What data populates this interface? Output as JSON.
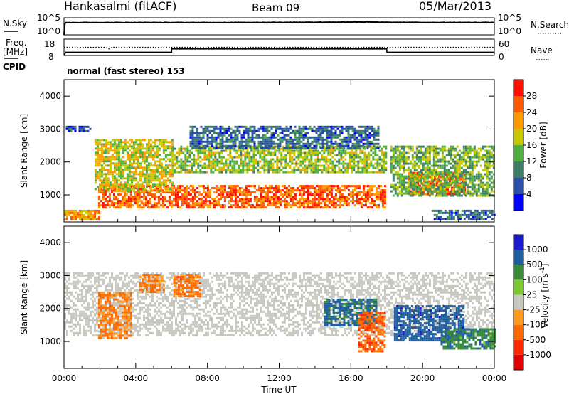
{
  "header": {
    "station": "Hankasalmi (fitACF)",
    "beam": "Beam 09",
    "date": "05/Mar/2013"
  },
  "strip_nsky": {
    "label": "N.Sky",
    "right_label": "N.Search",
    "left_ticks": [
      "10^5",
      "10^0"
    ],
    "right_ticks": [
      "10^5",
      "10^0"
    ]
  },
  "strip_freq": {
    "label_line1": "Freq.",
    "label_line2": "[MHz]",
    "left_ticks": [
      "18",
      "8"
    ],
    "right_ticks": [
      "60",
      "0"
    ],
    "right_label": "Nave",
    "cpid_label": "CPID",
    "cpid_text": "normal (fast stereo) 153"
  },
  "x_axis": {
    "ticks": [
      "00:00",
      "04:00",
      "08:00",
      "12:00",
      "16:00",
      "20:00",
      "00:00"
    ],
    "label": "Time UT"
  },
  "power_panel": {
    "ylabel": "Slant Range [km]",
    "yticks": [
      "4000",
      "3000",
      "2000",
      "1000"
    ],
    "colorbar_label": "Power [dB]",
    "colorbar_ticks": [
      "28",
      "24",
      "20",
      "16",
      "12",
      "8",
      "4"
    ]
  },
  "velocity_panel": {
    "ylabel": "Slant Range [km]",
    "yticks": [
      "4000",
      "3000",
      "2000",
      "1000"
    ],
    "colorbar_label": "Velocity [m s",
    "colorbar_label_sup": "-1",
    "colorbar_label_end": "]",
    "colorbar_ticks": [
      "1000",
      "500",
      "100",
      "25",
      "-25",
      "-100",
      "-500",
      "-1000"
    ]
  },
  "colors": {
    "power_scale": [
      "#0000ff",
      "#2a4fa8",
      "#3f7f6a",
      "#4fb040",
      "#c8c800",
      "#ff9900",
      "#ff5a00",
      "#ff1000"
    ],
    "velocity_scale": [
      "#1a1acc",
      "#2060a0",
      "#3a8c3a",
      "#7cc830",
      "#c8c8c0",
      "#ff9a20",
      "#ff6a00",
      "#ff2a00",
      "#e00000"
    ],
    "ground_scatter": "#c8c8c0"
  },
  "chart_data": [
    {
      "type": "heatmap",
      "panel": "power",
      "x_range_hours": [
        0,
        24
      ],
      "y_range_km": [
        180,
        4500
      ],
      "value_range_db": [
        0,
        32
      ],
      "scatter_regions": [
        {
          "t_start": 1.9,
          "t_end": 17.9,
          "range_start": 600,
          "range_end": 1300,
          "power_db": 26
        },
        {
          "t_start": 1.7,
          "t_end": 6.0,
          "range_start": 1100,
          "range_end": 2700,
          "power_db": 18
        },
        {
          "t_start": 6.0,
          "t_end": 18.0,
          "range_start": 1700,
          "range_end": 2500,
          "power_db": 16
        },
        {
          "t_start": 7.0,
          "t_end": 17.5,
          "range_start": 2400,
          "range_end": 3100,
          "power_db": 8
        },
        {
          "t_start": 0.1,
          "t_end": 1.5,
          "range_start": 2950,
          "range_end": 3100,
          "power_db": 6
        },
        {
          "t_start": 19.2,
          "t_end": 22.3,
          "range_start": 1000,
          "range_end": 1700,
          "power_db": 26
        },
        {
          "t_start": 18.2,
          "t_end": 24.0,
          "range_start": 1000,
          "range_end": 2500,
          "power_db": 14
        },
        {
          "t_start": 0.0,
          "t_end": 2.0,
          "range_start": 250,
          "range_end": 550,
          "power_db": 22
        },
        {
          "t_start": 20.5,
          "t_end": 24.0,
          "range_start": 250,
          "range_end": 550,
          "power_db": 8
        }
      ]
    },
    {
      "type": "heatmap",
      "panel": "velocity",
      "x_range_hours": [
        0,
        24
      ],
      "y_range_km": [
        180,
        4500
      ],
      "value_range_ms": [
        -1000,
        1000
      ],
      "scatter_regions": [
        {
          "t_start": 0.0,
          "t_end": 24.0,
          "range_start": 1200,
          "range_end": 3100,
          "velocity": 0,
          "ground_scatter": true
        },
        {
          "t_start": 1.9,
          "t_end": 3.8,
          "range_start": 1100,
          "range_end": 2500,
          "velocity": -120
        },
        {
          "t_start": 4.2,
          "t_end": 5.6,
          "range_start": 2500,
          "range_end": 3050,
          "velocity": -100
        },
        {
          "t_start": 6.1,
          "t_end": 7.6,
          "range_start": 2400,
          "range_end": 3050,
          "velocity": -150
        },
        {
          "t_start": 14.5,
          "t_end": 17.4,
          "range_start": 1500,
          "range_end": 2300,
          "velocity": 300
        },
        {
          "t_start": 16.4,
          "t_end": 17.9,
          "range_start": 700,
          "range_end": 1900,
          "velocity": -200
        },
        {
          "t_start": 18.4,
          "t_end": 22.3,
          "range_start": 1000,
          "range_end": 2100,
          "velocity": 400
        },
        {
          "t_start": 21.0,
          "t_end": 24.0,
          "range_start": 800,
          "range_end": 1400,
          "velocity": 200
        }
      ]
    },
    {
      "type": "line",
      "panel": "noise_sky",
      "x_range_hours": [
        0,
        24
      ],
      "scale": "log",
      "ylim": [
        1,
        100000
      ],
      "x": [
        0.0,
        0.1,
        4,
        8,
        12,
        15,
        16.5,
        18.0,
        20,
        24
      ],
      "y": [
        1,
        4000,
        4100,
        4000,
        4500,
        5200,
        6000,
        4800,
        4300,
        4200
      ]
    },
    {
      "type": "line",
      "panel": "frequency",
      "x_range_hours": [
        0,
        24
      ],
      "ylim": [
        8,
        18
      ],
      "x": [
        0.0,
        0.1,
        6.0,
        6.01,
        18.0,
        18.01,
        24
      ],
      "y": [
        8,
        10,
        10,
        12,
        12,
        10,
        10
      ]
    },
    {
      "type": "line",
      "panel": "nave",
      "x_range_hours": [
        0,
        24
      ],
      "ylim": [
        0,
        60
      ],
      "x": [
        0.0,
        2.3,
        2.5,
        2.7,
        24
      ],
      "y": [
        30,
        30,
        24,
        30,
        30
      ]
    }
  ]
}
